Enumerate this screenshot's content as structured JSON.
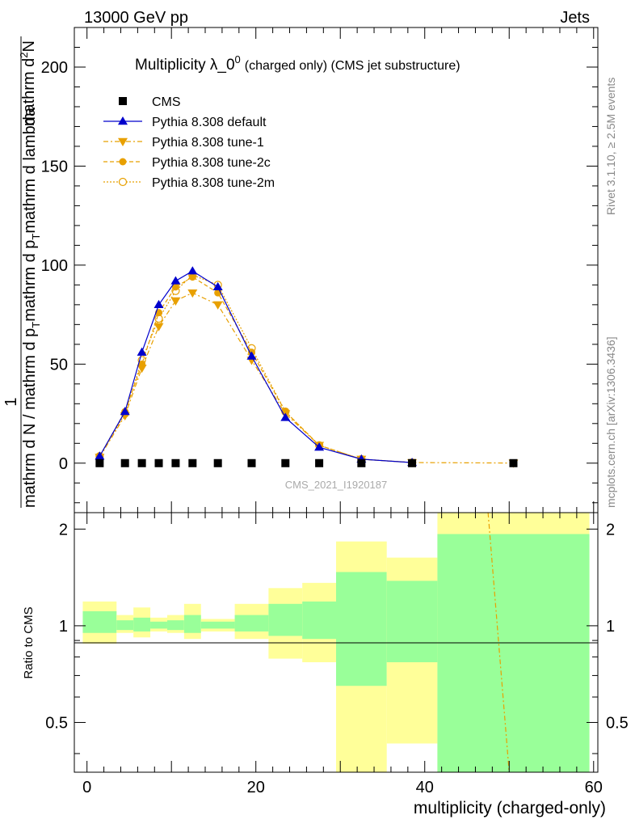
{
  "header": {
    "left": "13000 GeV pp",
    "right": "Jets"
  },
  "side_labels": {
    "rivet": "Rivet 3.1.10, ≥ 2.5M events",
    "mcplots": "mcplots.cern.ch [arXiv:1306.3436]"
  },
  "watermark": "CMS_2021_I1920187",
  "colors": {
    "cms": "#000000",
    "default": "#0000cc",
    "tunes": "#e8a000",
    "band_inner": "#99ff99",
    "band_outer": "#ffff99"
  },
  "chart_data": [
    {
      "type": "scatter",
      "title_main": "Multiplicity λ_0",
      "title_sup": "0",
      "title_suffix": "(charged only) (CMS jet substructure)",
      "ylabel_top": "1",
      "ylabel_num_a": "mathrm d",
      "ylabel_num_sup": "2",
      "ylabel_num_b": "N",
      "ylabel_den_a": "mathrm d N / mathrm d p",
      "ylabel_den_b": "mathrm d p",
      "ylabel_den_c": "mathrm d lambda",
      "ylabel_den_sub": "T",
      "xlim": [
        -1.5,
        60.5
      ],
      "ylim": [
        -25,
        220
      ],
      "yticks": [
        0,
        50,
        100,
        150,
        200
      ],
      "legend_position": "top-left",
      "series": [
        {
          "name": "CMS",
          "marker": "square",
          "x": [
            1.5,
            4.5,
            6.5,
            8.5,
            10.5,
            12.5,
            15.5,
            19.5,
            23.5,
            27.5,
            32.5,
            38.5,
            50.5
          ],
          "y": [
            0,
            0,
            0,
            0,
            0,
            0,
            0,
            0,
            0,
            0,
            0,
            0,
            0
          ]
        },
        {
          "name": "Pythia 8.308 default",
          "marker": "triangle-up",
          "x": [
            1.5,
            4.5,
            6.5,
            8.5,
            10.5,
            12.5,
            15.5,
            19.5,
            23.5,
            27.5,
            32.5,
            38.5
          ],
          "y": [
            3.5,
            26,
            56,
            80,
            92,
            97,
            89,
            54,
            23,
            8,
            2,
            0.3
          ]
        },
        {
          "name": "Pythia 8.308 tune-1",
          "marker": "triangle-down",
          "x": [
            1.5,
            4.5,
            6.5,
            8.5,
            10.5,
            12.5,
            15.5,
            19.5,
            23.5,
            27.5,
            32.5,
            38.5,
            50.5
          ],
          "y": [
            3,
            24,
            48,
            69,
            82,
            86,
            80,
            52,
            25,
            9,
            2,
            0.3,
            0.05
          ]
        },
        {
          "name": "Pythia 8.308 tune-2c",
          "marker": "circle",
          "x": [
            1.5,
            4.5,
            6.5,
            8.5,
            10.5,
            12.5,
            15.5,
            19.5,
            23.5,
            27.5,
            32.5,
            38.5
          ],
          "y": [
            3.5,
            26,
            50,
            76,
            89,
            94,
            86,
            56,
            26,
            9,
            2,
            0.3
          ]
        },
        {
          "name": "Pythia 8.308 tune-2m",
          "marker": "circle-open",
          "x": [
            1.5,
            4.5,
            6.5,
            8.5,
            10.5,
            12.5,
            15.5,
            19.5,
            23.5,
            27.5,
            32.5,
            38.5
          ],
          "y": [
            3.5,
            25,
            52,
            73,
            87,
            95,
            90,
            58,
            26,
            9,
            2,
            0.3
          ]
        }
      ]
    },
    {
      "type": "area",
      "ylabel": "Ratio to CMS",
      "xlabel": "multiplicity (charged-only)",
      "xlim": [
        -1.5,
        60.5
      ],
      "ylim": [
        0.35,
        2.25
      ],
      "yticks": [
        0.5,
        1,
        2
      ],
      "xticks": [
        0,
        20,
        40,
        60
      ],
      "bins": [
        {
          "lo": -0.5,
          "hi": 3.5,
          "inner": [
            0.95,
            1.11
          ],
          "outer": [
            0.88,
            1.19
          ]
        },
        {
          "lo": 3.5,
          "hi": 5.5,
          "inner": [
            0.97,
            1.04
          ],
          "outer": [
            0.95,
            1.08
          ]
        },
        {
          "lo": 5.5,
          "hi": 7.5,
          "inner": [
            0.96,
            1.06
          ],
          "outer": [
            0.92,
            1.14
          ]
        },
        {
          "lo": 7.5,
          "hi": 9.5,
          "inner": [
            0.98,
            1.03
          ],
          "outer": [
            0.96,
            1.06
          ]
        },
        {
          "lo": 9.5,
          "hi": 11.5,
          "inner": [
            0.97,
            1.04
          ],
          "outer": [
            0.95,
            1.08
          ]
        },
        {
          "lo": 11.5,
          "hi": 13.5,
          "inner": [
            0.95,
            1.08
          ],
          "outer": [
            0.91,
            1.17
          ]
        },
        {
          "lo": 13.5,
          "hi": 17.5,
          "inner": [
            0.98,
            1.03
          ],
          "outer": [
            0.96,
            1.05
          ]
        },
        {
          "lo": 17.5,
          "hi": 21.5,
          "inner": [
            0.96,
            1.08
          ],
          "outer": [
            0.91,
            1.17
          ]
        },
        {
          "lo": 21.5,
          "hi": 25.5,
          "inner": [
            0.93,
            1.17
          ],
          "outer": [
            0.79,
            1.31
          ]
        },
        {
          "lo": 25.5,
          "hi": 29.5,
          "inner": [
            0.91,
            1.19
          ],
          "outer": [
            0.77,
            1.36
          ]
        },
        {
          "lo": 29.5,
          "hi": 35.5,
          "inner": [
            0.65,
            1.47
          ],
          "outer": [
            0.3,
            1.83
          ]
        },
        {
          "lo": 35.5,
          "hi": 41.5,
          "inner": [
            0.77,
            1.38
          ],
          "outer": [
            0.43,
            1.63
          ]
        },
        {
          "lo": 41.5,
          "hi": 59.5,
          "inner": [
            0.3,
            1.93
          ],
          "outer": [
            0.3,
            2.6
          ]
        }
      ],
      "line": {
        "name": "Pythia 8.308 tune-1",
        "x": [
          47.5,
          50.0
        ],
        "y": [
          2.45,
          0.3
        ]
      }
    }
  ]
}
